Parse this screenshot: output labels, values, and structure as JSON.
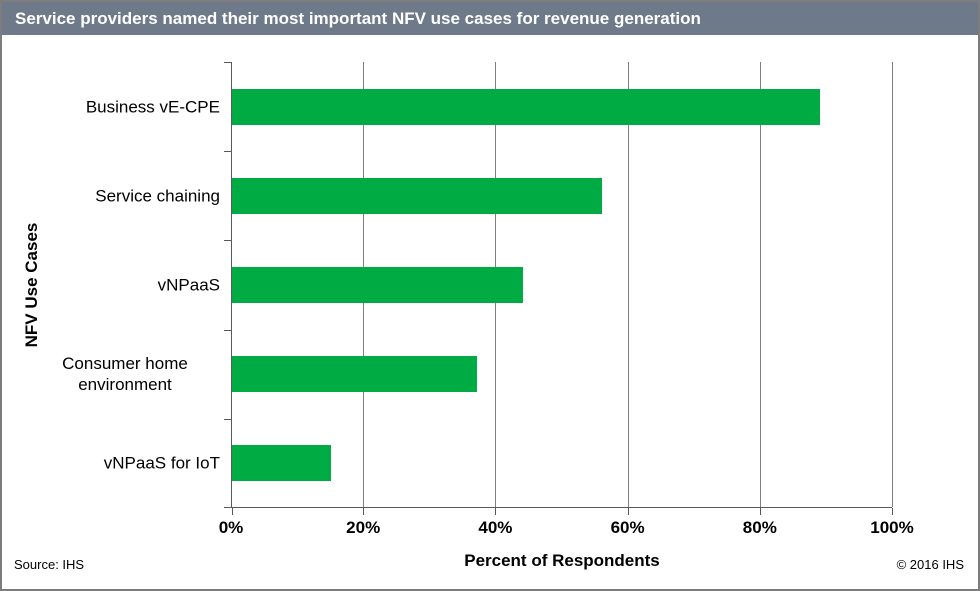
{
  "title_bar": {
    "text": "Service providers named their most important NFV use cases for revenue generation",
    "background": "#6E7A89",
    "text_color": "#ffffff"
  },
  "footer": {
    "source": "Source: IHS",
    "copyright": "© 2016 IHS"
  },
  "chart_data": {
    "type": "bar",
    "orientation": "horizontal",
    "title": "Service providers named their most important NFV use cases for revenue generation",
    "categories": [
      "Business vE-CPE",
      "Service chaining",
      "vNPaaS",
      "Consumer home environment",
      "vNPaaS for IoT"
    ],
    "values": [
      89,
      56,
      44,
      37,
      15
    ],
    "xlabel": "Percent of Respondents",
    "ylabel": "NFV Use Cases",
    "xlim": [
      0,
      100
    ],
    "x_ticks": [
      0,
      20,
      40,
      60,
      80,
      100
    ],
    "x_tick_labels": [
      "0%",
      "20%",
      "40%",
      "60%",
      "80%",
      "100%"
    ],
    "bar_color": "#00AB44",
    "grid": true,
    "gridline_color": "#808080",
    "axis_color": "#595959",
    "legend": "none"
  }
}
